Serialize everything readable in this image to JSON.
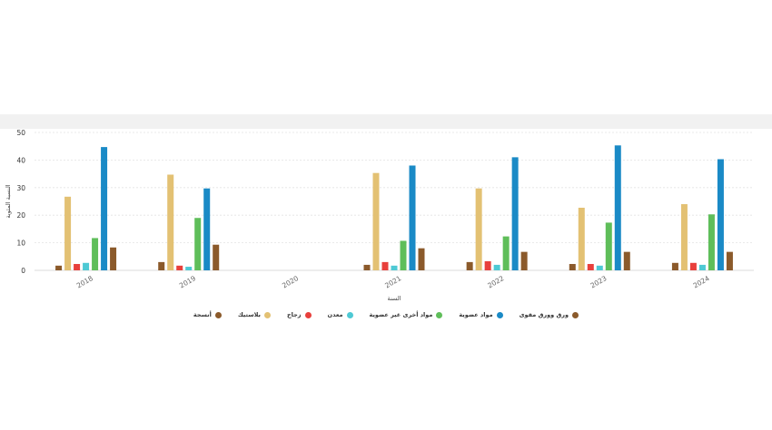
{
  "chart_data": {
    "type": "bar",
    "categories": [
      "2018",
      "2019",
      "2020",
      "2021",
      "2022",
      "2023",
      "2024"
    ],
    "xlabel": "السنة",
    "ylabel": "النسبة المئوية",
    "ylim": [
      0,
      50
    ],
    "yticks": [
      "0",
      "10",
      "20",
      "30",
      "40",
      "50"
    ],
    "grid": true,
    "legend_position": "bottom",
    "series": [
      {
        "name": "أنسجة",
        "color": "#8b5a2b",
        "values": [
          1.7,
          3.0,
          null,
          2.0,
          3.0,
          2.3,
          2.7
        ]
      },
      {
        "name": "بلاستيك",
        "color": "#e3c173",
        "values": [
          26.7,
          34.7,
          null,
          35.3,
          29.7,
          22.7,
          24.0
        ]
      },
      {
        "name": "زجاج",
        "color": "#e8403c",
        "values": [
          2.3,
          1.7,
          null,
          3.0,
          3.3,
          2.3,
          2.7
        ]
      },
      {
        "name": "معدن",
        "color": "#4ec9d4",
        "values": [
          2.7,
          1.3,
          null,
          1.7,
          2.0,
          1.7,
          2.0
        ]
      },
      {
        "name": "مواد أخرى غير عضوية",
        "color": "#5fbe5a",
        "values": [
          11.7,
          19.0,
          null,
          10.7,
          12.3,
          17.3,
          20.3
        ]
      },
      {
        "name": "مواد عضوية",
        "color": "#1a8ac6",
        "values": [
          44.7,
          29.7,
          null,
          38.0,
          41.0,
          45.3,
          40.3
        ]
      },
      {
        "name": "ورق وورق مقوى",
        "color": "#8b5a2b",
        "values": [
          8.3,
          9.3,
          null,
          8.0,
          6.7,
          6.7,
          6.7
        ]
      }
    ]
  }
}
